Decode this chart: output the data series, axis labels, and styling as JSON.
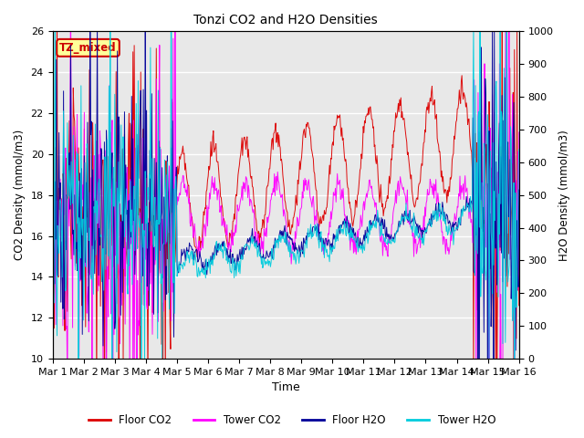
{
  "title": "Tonzi CO2 and H2O Densities",
  "xlabel": "Time",
  "ylabel_left": "CO2 Density (mmol/m3)",
  "ylabel_right": "H2O Density (mmol/m3)",
  "ylim_left": [
    10,
    26
  ],
  "ylim_right": [
    0,
    1000
  ],
  "xtick_labels": [
    "Mar 1",
    "Mar 2",
    "Mar 3",
    "Mar 4",
    "Mar 5",
    "Mar 6",
    "Mar 7",
    "Mar 8",
    "Mar 9",
    "Mar 10",
    "Mar 11",
    "Mar 12",
    "Mar 13",
    "Mar 14",
    "Mar 15",
    "Mar 16"
  ],
  "annotation_text": "TZ_mixed",
  "annotation_color": "#cc0000",
  "annotation_bg": "#ffff99",
  "plot_bg": "#e8e8e8",
  "colors": {
    "floor_co2": "#dd0000",
    "tower_co2": "#ff00ff",
    "floor_h2o": "#000099",
    "tower_h2o": "#00ccdd"
  },
  "legend_labels": [
    "Floor CO2",
    "Tower CO2",
    "Floor H2O",
    "Tower H2O"
  ],
  "n_days": 15,
  "pts_per_day": 48
}
